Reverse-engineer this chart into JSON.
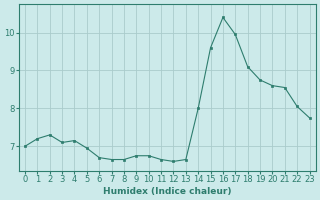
{
  "x": [
    0,
    1,
    2,
    3,
    4,
    5,
    6,
    7,
    8,
    9,
    10,
    11,
    12,
    13,
    14,
    15,
    16,
    17,
    18,
    19,
    20,
    21,
    22,
    23
  ],
  "y": [
    7.0,
    7.2,
    7.3,
    7.1,
    7.15,
    6.95,
    6.7,
    6.65,
    6.65,
    6.75,
    6.75,
    6.65,
    6.6,
    6.65,
    8.0,
    9.6,
    10.4,
    9.95,
    9.1,
    8.75,
    8.6,
    8.55,
    8.05,
    7.75
  ],
  "line_color": "#2e7d6e",
  "marker": "s",
  "marker_size": 2.0,
  "linewidth": 0.8,
  "bg_color": "#cceaea",
  "grid_color": "#aacccc",
  "ylabel_ticks": [
    7,
    8,
    9,
    10
  ],
  "xlabel": "Humidex (Indice chaleur)",
  "xlim": [
    -0.5,
    23.5
  ],
  "ylim": [
    6.35,
    10.75
  ],
  "xlabel_fontsize": 6.5,
  "tick_fontsize": 6.0
}
